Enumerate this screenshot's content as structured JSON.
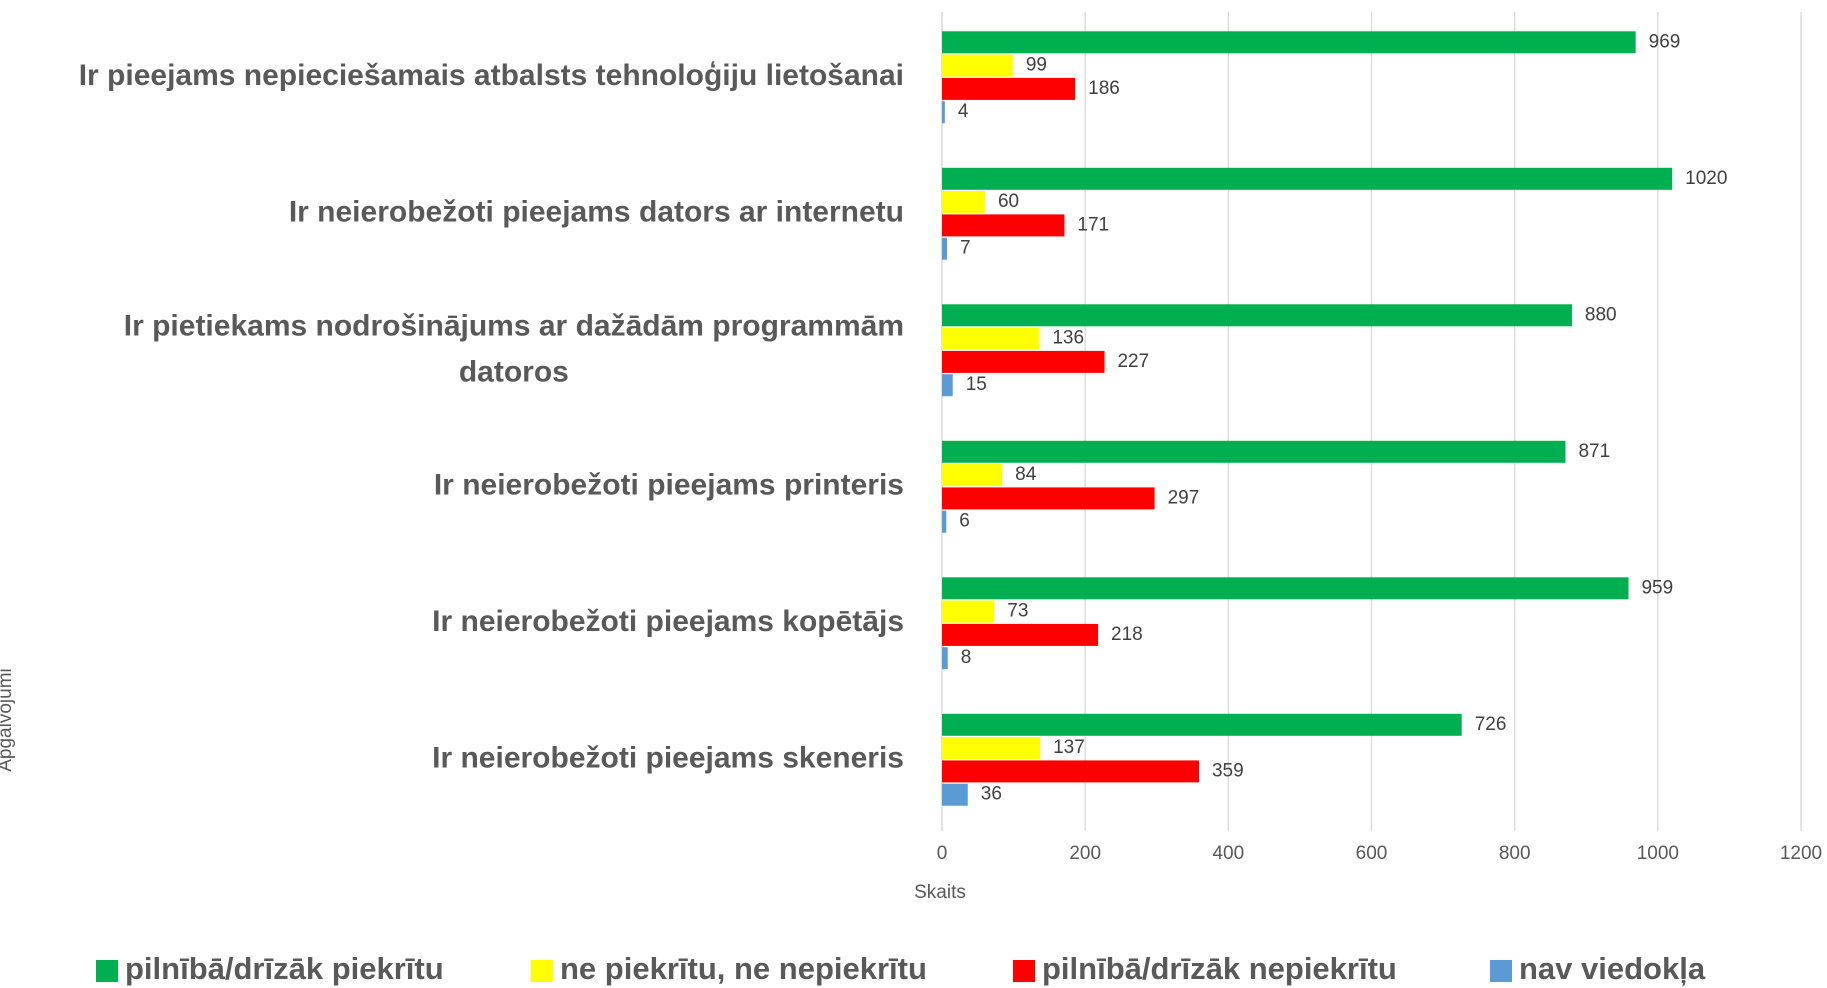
{
  "chart_data": {
    "type": "bar",
    "orientation": "horizontal",
    "categories": [
      "Ir pieejams nepieciešamais atbalsts tehnoloģiju lietošanai",
      "Ir neierobežoti pieejams dators ar internetu",
      "Ir pietiekams nodrošinājums ar dažādām programmām datoros",
      "Ir neierobežoti pieejams printeris",
      "Ir neierobežoti pieejams kopētājs",
      "Ir neierobežoti pieejams skeneris"
    ],
    "series": [
      {
        "name": "pilnībā/drīzāk piekrītu",
        "color": "#00b050",
        "values": [
          969,
          1020,
          880,
          871,
          959,
          726
        ]
      },
      {
        "name": "ne piekrītu, ne nepiekrītu",
        "color": "#ffff00",
        "values": [
          99,
          60,
          136,
          84,
          73,
          137
        ]
      },
      {
        "name": "pilnībā/drīzāk nepiekrītu",
        "color": "#ff0000",
        "values": [
          186,
          171,
          227,
          297,
          218,
          359
        ]
      },
      {
        "name": "nav viedokļa",
        "color": "#5b9bd5",
        "values": [
          4,
          7,
          15,
          6,
          8,
          36
        ]
      }
    ],
    "xlabel": "Skaits",
    "ylabel": "Apgalvojumi",
    "xlim": [
      0,
      1200
    ],
    "xticks": [
      0,
      200,
      400,
      600,
      800,
      1000,
      1200
    ],
    "grid": true,
    "legend": "bottom"
  }
}
